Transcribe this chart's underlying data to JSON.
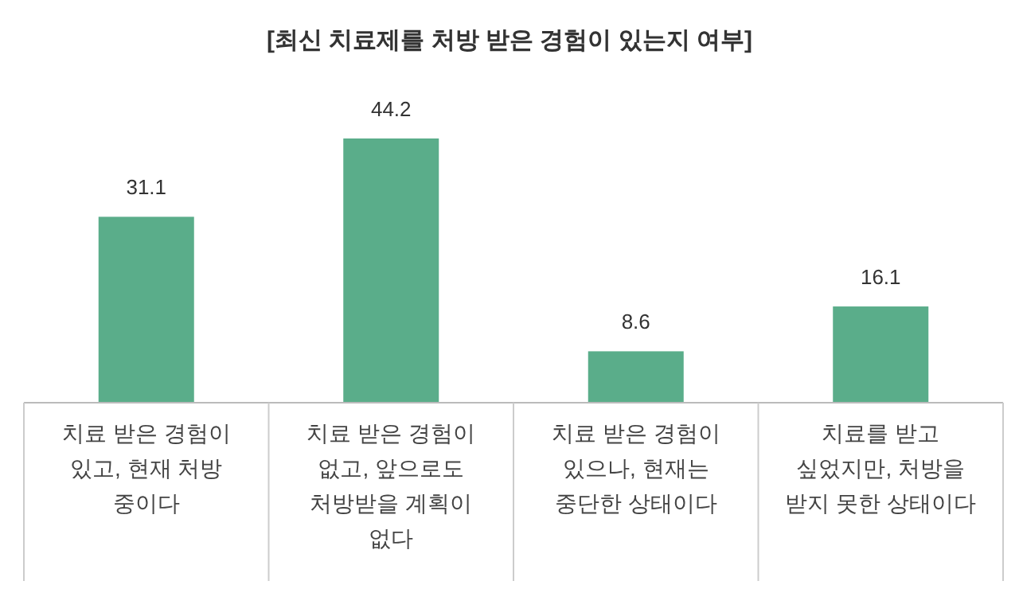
{
  "chart_data": {
    "type": "bar",
    "title": "[최신 치료제를 처방 받은 경험이 있는지 여부]",
    "categories": [
      "치료 받은 경험이\n있고, 현재 처방\n중이다",
      "치료 받은 경험이\n없고, 앞으로도\n처방받을 계획이\n없다",
      "치료 받은 경험이\n있으나, 현재는\n중단한 상태이다",
      "치료를 받고\n싶었지만, 처방을\n받지 못한 상태이다"
    ],
    "values": [
      31.1,
      44.2,
      8.6,
      16.1
    ],
    "color": "#5aad8a",
    "data_labels": true
  }
}
